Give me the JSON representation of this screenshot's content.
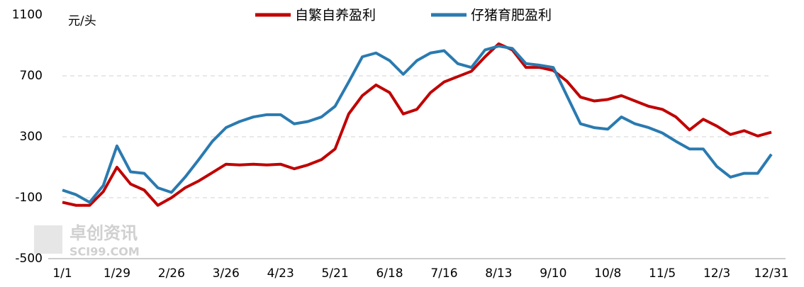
{
  "chart_data": {
    "type": "line",
    "y_label": "元/头",
    "watermark": [
      "卓创资讯",
      "SCI99.COM"
    ],
    "categories": [
      "1/1",
      null,
      null,
      null,
      "1/29",
      null,
      null,
      null,
      "2/26",
      null,
      null,
      null,
      "3/26",
      null,
      null,
      null,
      "4/23",
      null,
      null,
      null,
      "5/21",
      null,
      null,
      null,
      "6/18",
      null,
      null,
      null,
      "7/16",
      null,
      null,
      null,
      "8/13",
      null,
      null,
      null,
      "9/10",
      null,
      null,
      null,
      "10/8",
      null,
      null,
      null,
      "11/5",
      null,
      null,
      null,
      "12/3",
      null,
      null,
      null,
      "12/31"
    ],
    "series": [
      {
        "name": "自繁自养盈利",
        "color": "#c00000",
        "values": [
          -130,
          -150,
          -150,
          -60,
          100,
          -10,
          -50,
          -150,
          -100,
          -35,
          10,
          65,
          120,
          115,
          120,
          115,
          120,
          90,
          115,
          150,
          220,
          450,
          570,
          640,
          590,
          450,
          480,
          590,
          660,
          695,
          730,
          825,
          910,
          870,
          755,
          755,
          735,
          665,
          560,
          535,
          545,
          570,
          535,
          500,
          480,
          430,
          345,
          415,
          370,
          315,
          340,
          305,
          330
        ]
      },
      {
        "name": "仔猪育肥盈利",
        "color": "#2a7ab0",
        "values": [
          -50,
          -80,
          -130,
          -20,
          240,
          70,
          60,
          -35,
          -65,
          35,
          150,
          270,
          360,
          400,
          430,
          445,
          445,
          385,
          400,
          430,
          500,
          660,
          825,
          850,
          800,
          710,
          800,
          850,
          865,
          780,
          755,
          870,
          895,
          880,
          780,
          770,
          755,
          570,
          385,
          360,
          350,
          430,
          385,
          360,
          325,
          270,
          220,
          220,
          105,
          35,
          60,
          60,
          185
        ]
      }
    ],
    "ylim": [
      -500,
      1100
    ],
    "yticks": [
      -500,
      -100,
      300,
      700,
      1100
    ],
    "grid": true,
    "legend": "top"
  }
}
